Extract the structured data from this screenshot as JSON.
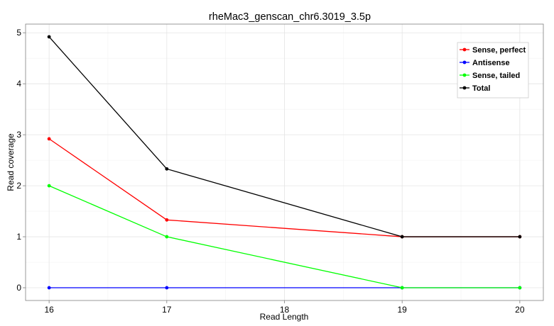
{
  "chart_data": {
    "type": "line",
    "title": "rheMac3_genscan_chr6.3019_3.5p",
    "xlabel": "Read Length",
    "ylabel": "Read coverage",
    "x": [
      16,
      17,
      19,
      20
    ],
    "xticks": [
      16,
      17,
      18,
      19,
      20
    ],
    "yticks": [
      0,
      1,
      2,
      3,
      4,
      5
    ],
    "xlim": [
      15.8,
      20.2
    ],
    "ylim": [
      -0.25,
      5.17
    ],
    "grid": true,
    "legend_position": "top-right",
    "series": [
      {
        "name": "Sense, perfect",
        "color": "#ff0000",
        "values": [
          2.92,
          1.33,
          1.0,
          1.0
        ]
      },
      {
        "name": "Antisense",
        "color": "#0000ff",
        "values": [
          0,
          0,
          0,
          0
        ]
      },
      {
        "name": "Sense, tailed",
        "color": "#00ff00",
        "values": [
          2.0,
          1.0,
          0,
          0
        ]
      },
      {
        "name": "Total",
        "color": "#000000",
        "values": [
          4.92,
          2.33,
          1.0,
          1.0
        ]
      }
    ]
  }
}
